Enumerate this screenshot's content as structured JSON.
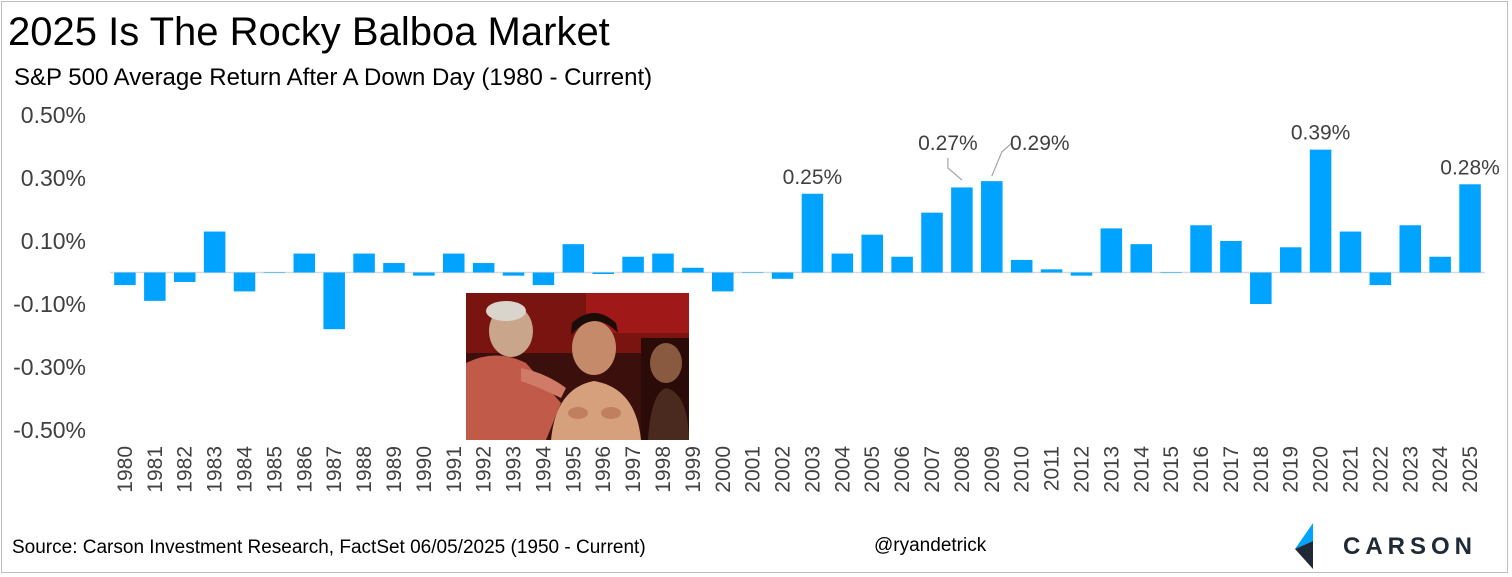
{
  "title": "2025 Is The Rocky Balboa Market",
  "subtitle": "S&P 500 Average Return After A Down Day (1980 - Current)",
  "footer": {
    "source": "Source: Carson Investment Research, FactSet 06/05/2025 (1950 - Current)",
    "handle": "@ryandetrick"
  },
  "logo": {
    "text": "CARSON"
  },
  "photo": {
    "icon": "rocky-corner-photo"
  },
  "colors": {
    "bar": "#00a3ff",
    "text": "#404040",
    "axis": "#d9d9d9"
  },
  "chart_data": {
    "type": "bar",
    "categories": [
      "1980",
      "1981",
      "1982",
      "1983",
      "1984",
      "1985",
      "1986",
      "1987",
      "1988",
      "1989",
      "1990",
      "1991",
      "1992",
      "1993",
      "1994",
      "1995",
      "1996",
      "1997",
      "1998",
      "1999",
      "2000",
      "2001",
      "2002",
      "2003",
      "2004",
      "2005",
      "2006",
      "2007",
      "2008",
      "2009",
      "2010",
      "2011",
      "2012",
      "2013",
      "2014",
      "2015",
      "2016",
      "2017",
      "2018",
      "2019",
      "2020",
      "2021",
      "2022",
      "2023",
      "2024",
      "2025"
    ],
    "values": [
      -0.04,
      -0.09,
      -0.03,
      0.13,
      -0.06,
      0.0,
      0.06,
      -0.18,
      0.06,
      0.03,
      -0.01,
      0.06,
      0.03,
      -0.01,
      -0.04,
      0.09,
      -0.005,
      0.05,
      0.06,
      0.015,
      -0.06,
      0.0,
      -0.02,
      0.25,
      0.06,
      0.12,
      0.05,
      0.19,
      0.27,
      0.29,
      0.04,
      0.01,
      -0.01,
      0.14,
      0.09,
      0.0,
      0.15,
      0.1,
      -0.1,
      0.08,
      0.39,
      0.13,
      -0.04,
      0.15,
      0.05,
      0.28
    ],
    "ylim": [
      -0.5,
      0.5
    ],
    "yticks": [
      "0.50%",
      "0.30%",
      "0.10%",
      "-0.10%",
      "-0.30%",
      "-0.50%"
    ],
    "yticks_values": [
      0.5,
      0.3,
      0.1,
      -0.1,
      -0.3,
      -0.5
    ],
    "data_labels": [
      {
        "category": "2003",
        "text": "0.25%"
      },
      {
        "category": "2008",
        "text": "0.27%"
      },
      {
        "category": "2009",
        "text": "0.29%"
      },
      {
        "category": "2020",
        "text": "0.39%"
      },
      {
        "category": "2025",
        "text": "0.28%"
      }
    ],
    "grid": false,
    "legend": "none"
  }
}
